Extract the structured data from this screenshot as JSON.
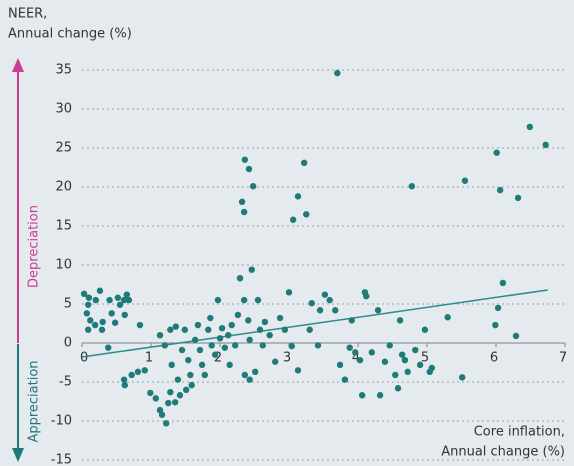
{
  "chart_data": {
    "type": "scatter",
    "ylabel": [
      "NEER,",
      "Annual change (%)"
    ],
    "xlabel": [
      "Core inflation,",
      "Annual change (%)"
    ],
    "up_label": "Depreciation",
    "down_label": "Appreciation",
    "up_color": "#cc3d8f",
    "down_color": "#1f7a7a",
    "color": "#1f7a7a",
    "trend_color": "#2a8c8c",
    "xlim": [
      0,
      7
    ],
    "xticks": [
      0,
      1,
      2,
      3,
      4,
      5,
      6,
      7
    ],
    "ylim": [
      -15,
      35
    ],
    "yticks": [
      -15,
      -10,
      -5,
      0,
      5,
      10,
      15,
      20,
      25,
      30,
      35
    ],
    "grid": true,
    "trend": {
      "x": [
        0,
        6.75
      ],
      "values": [
        -1.8,
        6.8
      ]
    },
    "x": [
      0.03,
      0.1,
      0.2,
      0.26,
      0.09,
      0.07,
      0.12,
      0.09,
      0.19,
      0.3,
      0.29,
      0.4,
      0.43,
      0.52,
      0.55,
      0.61,
      0.65,
      0.68,
      0.48,
      0.38,
      0.84,
      0.62,
      0.61,
      0.62,
      0.72,
      0.81,
      0.91,
      0.99,
      1.07,
      1.13,
      1.16,
      1.22,
      1.28,
      1.25,
      1.35,
      1.42,
      1.39,
      1.3,
      1.13,
      1.2,
      1.28,
      1.36,
      1.49,
      1.45,
      1.54,
      1.57,
      1.59,
      1.51,
      1.64,
      1.68,
      1.71,
      1.74,
      1.78,
      1.83,
      1.86,
      1.88,
      1.93,
      1.97,
      2.0,
      2.03,
      2.07,
      2.12,
      2.14,
      2.17,
      2.22,
      2.26,
      2.29,
      2.32,
      2.35,
      2.36,
      2.42,
      2.48,
      2.46,
      2.35,
      2.41,
      2.43,
      2.36,
      2.43,
      2.51,
      2.55,
      2.58,
      2.62,
      2.65,
      2.72,
      2.8,
      2.87,
      2.94,
      3.0,
      3.04,
      3.13,
      3.25,
      3.06,
      3.13,
      3.22,
      3.3,
      3.42,
      3.33,
      3.45,
      3.52,
      3.59,
      3.67,
      3.7,
      3.74,
      3.81,
      3.88,
      3.91,
      3.96,
      4.03,
      4.06,
      4.1,
      4.12,
      4.2,
      4.29,
      4.32,
      4.39,
      4.46,
      4.54,
      4.58,
      4.61,
      4.64,
      4.68,
      4.72,
      4.78,
      4.83,
      4.9,
      4.97,
      5.04,
      5.07,
      5.3,
      5.51,
      5.55,
      5.99,
      6.01,
      6.03,
      6.06,
      6.1,
      6.29,
      6.32,
      6.49,
      6.72
    ],
    "values": [
      6.3,
      5.8,
      5.5,
      6.7,
      4.9,
      3.8,
      2.9,
      1.7,
      2.3,
      2.7,
      1.7,
      5.5,
      3.8,
      5.8,
      4.9,
      5.5,
      6.2,
      5.5,
      2.6,
      -0.6,
      2.3,
      3.6,
      -4.7,
      -5.4,
      -4.1,
      -3.7,
      -3.5,
      -6.4,
      -7.1,
      -8.6,
      -9.2,
      -10.3,
      -6.3,
      -7.7,
      -7.6,
      -6.7,
      -4.7,
      -2.8,
      1.0,
      -0.3,
      1.7,
      2.1,
      1.7,
      -0.9,
      -2.2,
      -4.1,
      -5.4,
      -6.0,
      0.4,
      2.3,
      -0.9,
      -2.8,
      -4.1,
      1.7,
      3.2,
      -0.3,
      -1.5,
      5.5,
      0.6,
      1.9,
      -0.6,
      1.0,
      -2.8,
      2.3,
      -0.3,
      3.6,
      8.3,
      18.1,
      16.8,
      23.5,
      22.3,
      20.1,
      9.4,
      5.5,
      2.9,
      0.4,
      -4.1,
      -4.7,
      -3.7,
      5.5,
      1.7,
      -0.3,
      2.7,
      1.0,
      -2.4,
      3.2,
      1.7,
      6.5,
      -0.4,
      -3.5,
      16.5,
      15.8,
      18.8,
      23.1,
      1.7,
      -0.3,
      5.1,
      4.2,
      6.2,
      5.5,
      4.2,
      34.6,
      -2.8,
      -4.7,
      -0.6,
      2.9,
      -1.2,
      -2.2,
      -6.7,
      6.5,
      6.0,
      -1.2,
      4.2,
      -6.7,
      -2.4,
      -0.3,
      -4.1,
      -5.8,
      2.9,
      -1.5,
      -2.2,
      -3.7,
      20.1,
      -0.9,
      -2.8,
      1.7,
      -3.7,
      -3.2,
      3.3,
      -4.4,
      20.8,
      2.3,
      24.4,
      4.5,
      19.6,
      7.7,
      0.9,
      18.6,
      27.7,
      25.4
    ]
  }
}
